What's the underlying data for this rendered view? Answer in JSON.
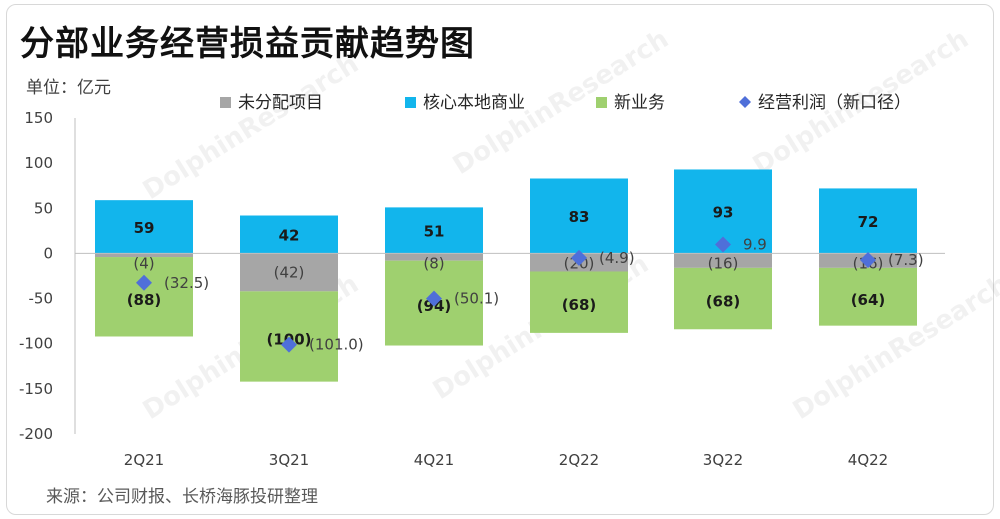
{
  "title": "分部业务经营损益贡献趋势图",
  "unit_label": "单位：亿元",
  "source": "来源：公司财报、长桥海豚投研整理",
  "watermark": "DolphinResearch",
  "colors": {
    "unallocated": "#a6a6a6",
    "core_local": "#12b5ec",
    "new_business": "#9fd06f",
    "operating_profit": "#4f6fd9"
  },
  "chart_data": {
    "type": "bar",
    "stacked": true,
    "categories": [
      "2Q21",
      "3Q21",
      "4Q21",
      "2Q22",
      "3Q22",
      "4Q22"
    ],
    "ylim": [
      -200,
      150
    ],
    "yticks": [
      150,
      100,
      50,
      0,
      -50,
      -100,
      -150,
      -200
    ],
    "legend_position": "top",
    "series": [
      {
        "name": "未分配项目",
        "key": "unallocated",
        "type": "bar",
        "values": [
          -4,
          -42,
          -8,
          -20,
          -16,
          -16
        ]
      },
      {
        "name": "核心本地商业",
        "key": "core_local",
        "type": "bar",
        "values": [
          59,
          42,
          51,
          83,
          93,
          72
        ]
      },
      {
        "name": "新业务",
        "key": "new_business",
        "type": "bar",
        "values": [
          -88,
          -100,
          -94,
          -68,
          -68,
          -64
        ]
      },
      {
        "name": "经营利润（新口径）",
        "key": "operating_profit",
        "type": "scatter",
        "marker": "diamond",
        "values": [
          -32.5,
          -101.0,
          -50.1,
          -4.9,
          9.9,
          -7.3
        ]
      }
    ],
    "data_labels": {
      "unallocated": [
        "(4)",
        "(42)",
        "(8)",
        "(20)",
        "(16)",
        "(16)"
      ],
      "core_local": [
        "59",
        "42",
        "51",
        "83",
        "93",
        "72"
      ],
      "new_business": [
        "(88)",
        "(100)",
        "(94)",
        "(68)",
        "(68)",
        "(64)"
      ],
      "operating_profit": [
        "(32.5)",
        "(101.0)",
        "(50.1)",
        "(4.9)",
        "9.9",
        "(7.3)"
      ]
    }
  }
}
